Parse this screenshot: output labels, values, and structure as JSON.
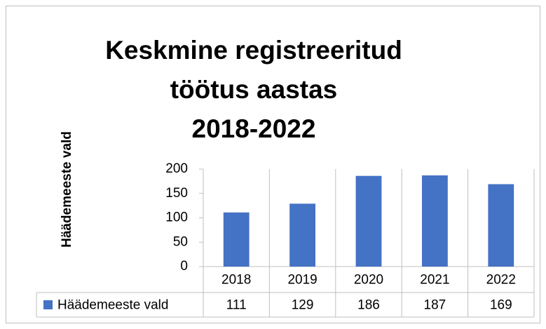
{
  "chart_data": {
    "type": "bar",
    "title": "Keskmine registreeritud\ntöötus aastas\n2018-2022",
    "y_label": "Häädemeeste vald",
    "categories": [
      "2018",
      "2019",
      "2020",
      "2021",
      "2022"
    ],
    "series": [
      {
        "name": "Häädemeeste vald",
        "color": "#4472c4",
        "values": [
          111,
          129,
          186,
          187,
          169
        ]
      }
    ],
    "ylim": [
      0,
      200
    ],
    "yticks": [
      0,
      50,
      100,
      150,
      200
    ],
    "data_table": true
  }
}
